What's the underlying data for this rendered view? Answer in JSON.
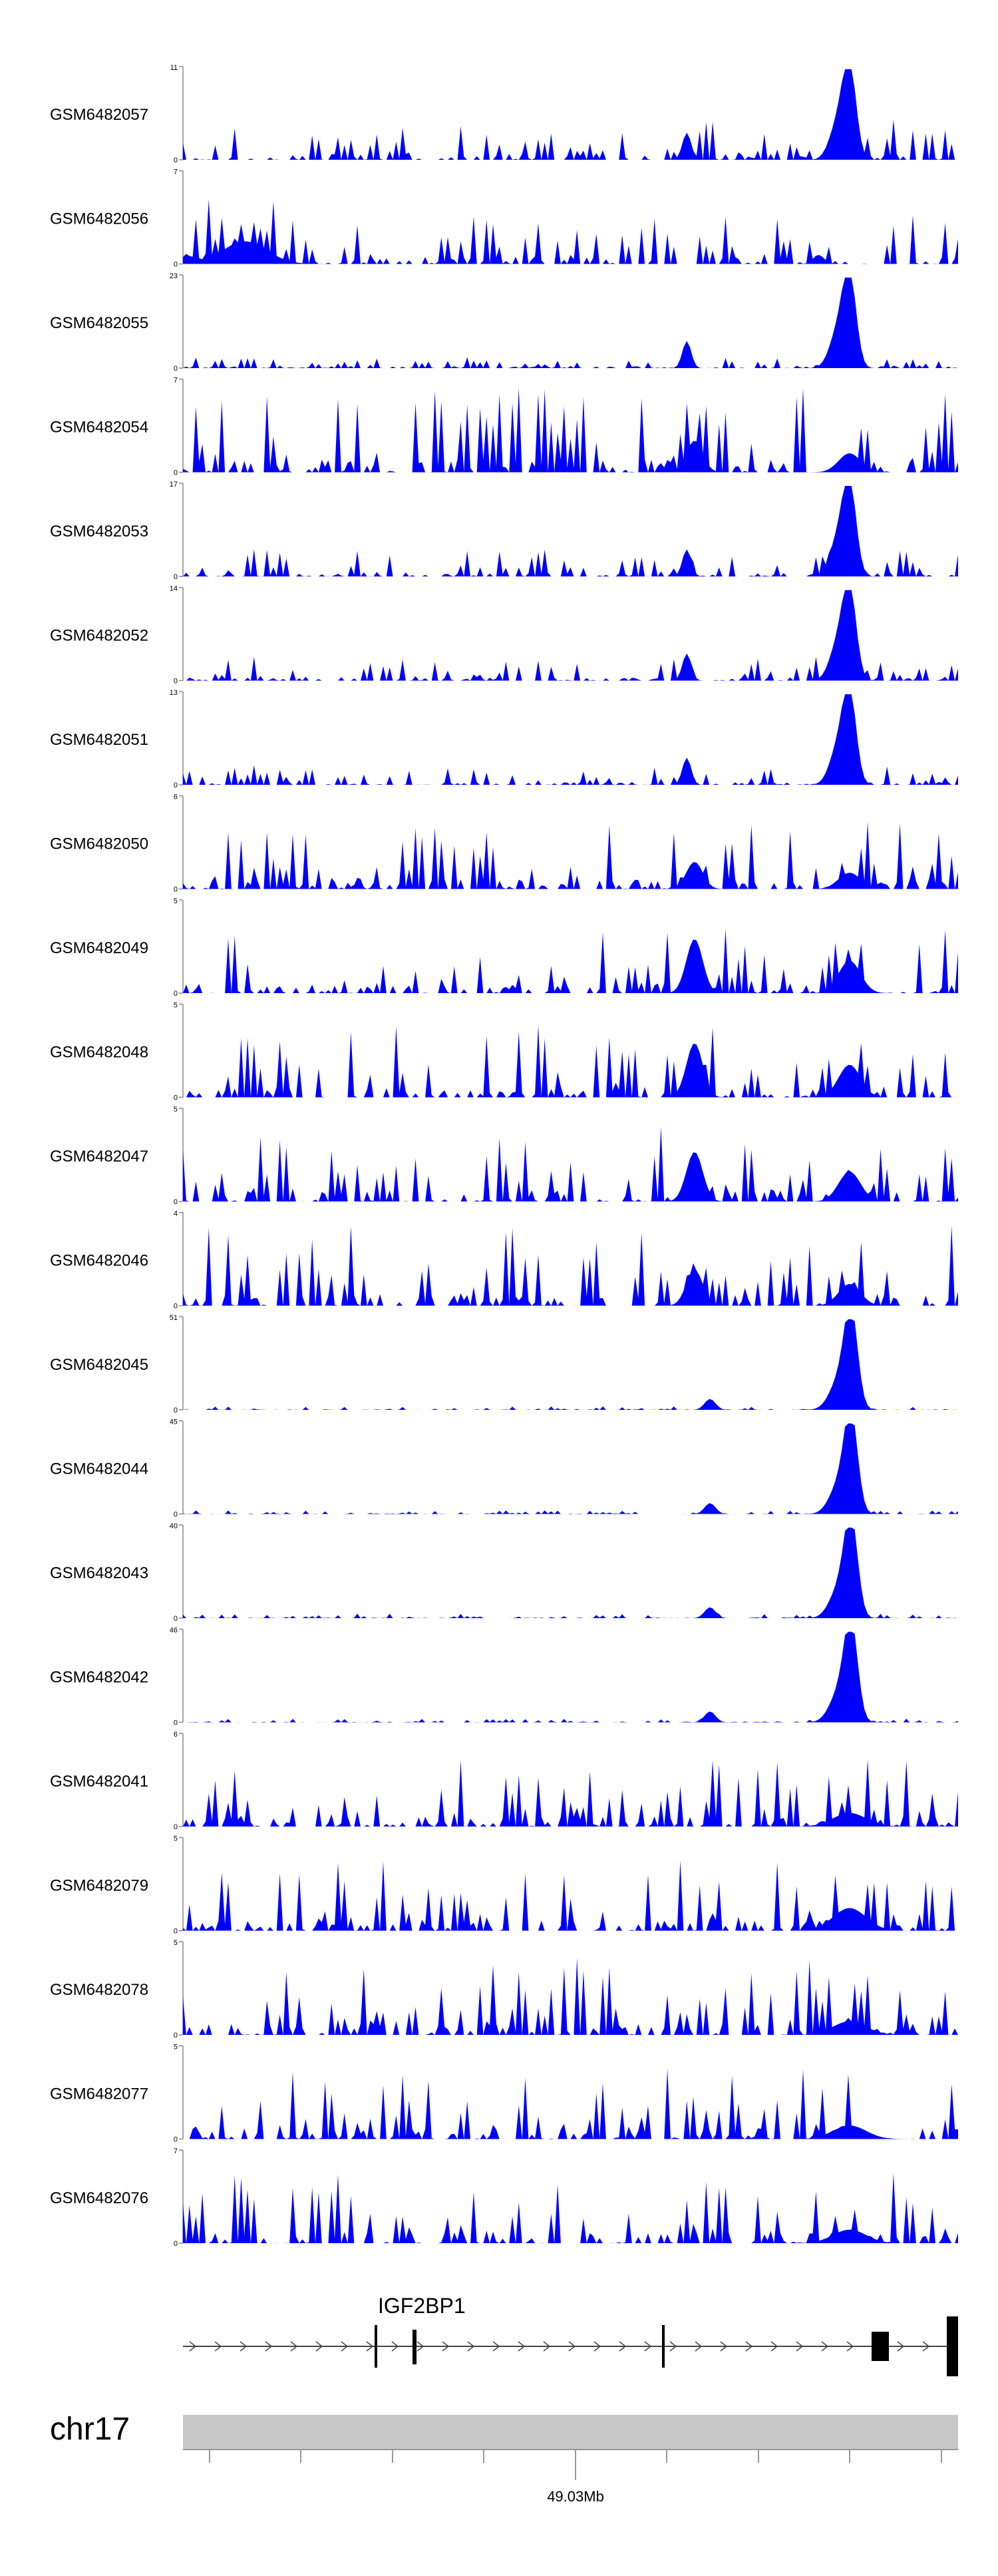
{
  "colors": {
    "signal": "#0000ff",
    "axis": "#888888",
    "gene": "#000000",
    "ideogram": "#c8c8c8",
    "text": "#000000"
  },
  "chart_data": {
    "type": "area",
    "xlabel": "",
    "tracks": [
      {
        "name": "GSM6482057",
        "ymax": "11",
        "ymin": "0",
        "shape": "sparse_peak",
        "peak_amp": 1.0,
        "bg": 0.45,
        "seed": 57
      },
      {
        "name": "GSM6482056",
        "ymax": "7",
        "ymin": "0",
        "shape": "left_heavy",
        "peak_amp": 0.25,
        "bg": 0.55,
        "seed": 56
      },
      {
        "name": "GSM6482055",
        "ymax": "23",
        "ymin": "0",
        "shape": "sparse_peak",
        "peak_amp": 1.0,
        "bg": 0.12,
        "seed": 55
      },
      {
        "name": "GSM6482054",
        "ymax": "7",
        "ymin": "0",
        "shape": "noise",
        "peak_amp": 0.35,
        "bg": 0.95,
        "seed": 54
      },
      {
        "name": "GSM6482053",
        "ymax": "17",
        "ymin": "0",
        "shape": "sparse_peak",
        "peak_amp": 1.0,
        "bg": 0.3,
        "seed": 53
      },
      {
        "name": "GSM6482052",
        "ymax": "14",
        "ymin": "0",
        "shape": "sparse_peak",
        "peak_amp": 1.0,
        "bg": 0.28,
        "seed": 52
      },
      {
        "name": "GSM6482051",
        "ymax": "13",
        "ymin": "0",
        "shape": "sparse_peak",
        "peak_amp": 1.0,
        "bg": 0.22,
        "seed": 51
      },
      {
        "name": "GSM6482050",
        "ymax": "6",
        "ymin": "0",
        "shape": "noise",
        "peak_amp": 0.3,
        "bg": 0.75,
        "seed": 50
      },
      {
        "name": "GSM6482049",
        "ymax": "5",
        "ymin": "0",
        "shape": "noise",
        "peak_amp": 0.6,
        "bg": 0.75,
        "seed": 49
      },
      {
        "name": "GSM6482048",
        "ymax": "5",
        "ymin": "0",
        "shape": "noise",
        "peak_amp": 0.6,
        "bg": 0.8,
        "seed": 48
      },
      {
        "name": "GSM6482047",
        "ymax": "5",
        "ymin": "0",
        "shape": "noise",
        "peak_amp": 0.55,
        "bg": 0.85,
        "seed": 47
      },
      {
        "name": "GSM6482046",
        "ymax": "4",
        "ymin": "0",
        "shape": "noise",
        "peak_amp": 0.4,
        "bg": 0.9,
        "seed": 46
      },
      {
        "name": "GSM6482045",
        "ymax": "51",
        "ymin": "0",
        "shape": "strong_peak",
        "peak_amp": 1.0,
        "bg": 0.04,
        "seed": 45
      },
      {
        "name": "GSM6482044",
        "ymax": "45",
        "ymin": "0",
        "shape": "strong_peak",
        "peak_amp": 1.0,
        "bg": 0.04,
        "seed": 44
      },
      {
        "name": "GSM6482043",
        "ymax": "40",
        "ymin": "0",
        "shape": "strong_peak",
        "peak_amp": 1.0,
        "bg": 0.05,
        "seed": 43
      },
      {
        "name": "GSM6482042",
        "ymax": "46",
        "ymin": "0",
        "shape": "strong_peak",
        "peak_amp": 1.0,
        "bg": 0.04,
        "seed": 42
      },
      {
        "name": "GSM6482041",
        "ymax": "6",
        "ymin": "0",
        "shape": "dense",
        "peak_amp": 0.3,
        "bg": 0.75,
        "seed": 41
      },
      {
        "name": "GSM6482079",
        "ymax": "5",
        "ymin": "0",
        "shape": "dense",
        "peak_amp": 0.5,
        "bg": 0.8,
        "seed": 79
      },
      {
        "name": "GSM6482078",
        "ymax": "5",
        "ymin": "0",
        "shape": "dense",
        "peak_amp": 0.3,
        "bg": 0.85,
        "seed": 78
      },
      {
        "name": "GSM6482077",
        "ymax": "5",
        "ymin": "0",
        "shape": "dense",
        "peak_amp": 0.3,
        "bg": 0.8,
        "seed": 77
      },
      {
        "name": "GSM6482076",
        "ymax": "7",
        "ymin": "0",
        "shape": "dense",
        "peak_amp": 0.3,
        "bg": 0.8,
        "seed": 76
      }
    ],
    "gene": {
      "name": "IGF2BP1",
      "strand": "+"
    },
    "chromosome": {
      "name": "chr17",
      "tick_label": "49.03Mb"
    }
  }
}
